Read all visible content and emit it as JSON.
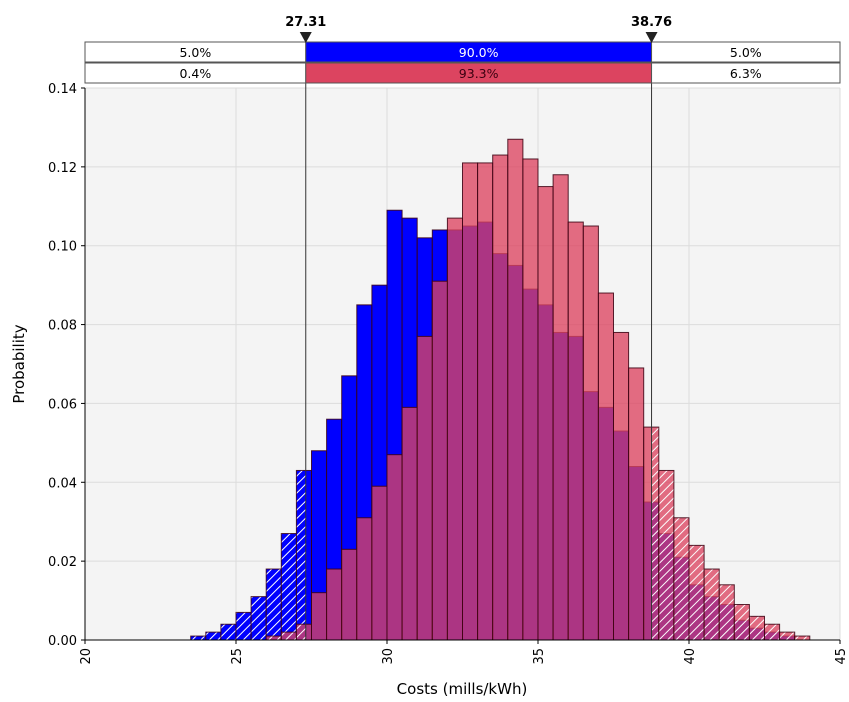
{
  "chart_data": {
    "type": "bar",
    "xlabel": "Costs (mills/kWh)",
    "ylabel": "Probability",
    "xlim": [
      20,
      45
    ],
    "ylim": [
      0,
      0.14
    ],
    "x_ticks": [
      "20",
      "25",
      "30",
      "35",
      "40",
      "45"
    ],
    "y_ticks": [
      "0.00",
      "0.02",
      "0.04",
      "0.06",
      "0.08",
      "0.10",
      "0.12",
      "0.14"
    ],
    "grid": true,
    "bin_width": 0.5,
    "markers": [
      {
        "label": "27.31",
        "x": 27.31
      },
      {
        "label": "38.76",
        "x": 38.76
      }
    ],
    "bands": [
      {
        "row": 1,
        "color": "#0000ff",
        "left": "5.0%",
        "middle": "90.0%",
        "right": "5.0%"
      },
      {
        "row": 2,
        "color": "#dc4460",
        "left": "0.4%",
        "middle": "93.3%",
        "right": "6.3%"
      }
    ],
    "series": [
      {
        "color": "#0000ff",
        "x": [
          23.5,
          24.0,
          24.5,
          25.0,
          25.5,
          26.0,
          26.5,
          27.0,
          27.5,
          28.0,
          28.5,
          29.0,
          29.5,
          30.0,
          30.5,
          31.0,
          31.5,
          32.0,
          32.5,
          33.0,
          33.5,
          34.0,
          34.5,
          35.0,
          35.5,
          36.0,
          36.5,
          37.0,
          37.5,
          38.0,
          38.5,
          39.0,
          39.5,
          40.0,
          40.5,
          41.0,
          41.5,
          42.0,
          42.5,
          43.0
        ],
        "values": [
          0.001,
          0.002,
          0.004,
          0.007,
          0.011,
          0.018,
          0.027,
          0.043,
          0.048,
          0.056,
          0.067,
          0.085,
          0.09,
          0.109,
          0.107,
          0.102,
          0.104,
          0.104,
          0.105,
          0.106,
          0.098,
          0.095,
          0.089,
          0.085,
          0.078,
          0.077,
          0.063,
          0.059,
          0.053,
          0.044,
          0.035,
          0.027,
          0.021,
          0.014,
          0.011,
          0.009,
          0.005,
          0.003,
          0.002,
          0.001
        ]
      },
      {
        "color": "#dc4460",
        "x": [
          26.0,
          26.5,
          27.0,
          27.5,
          28.0,
          28.5,
          29.0,
          29.5,
          30.0,
          30.5,
          31.0,
          31.5,
          32.0,
          32.5,
          33.0,
          33.5,
          34.0,
          34.5,
          35.0,
          35.5,
          36.0,
          36.5,
          37.0,
          37.5,
          38.0,
          38.5,
          39.0,
          39.5,
          40.0,
          40.5,
          41.0,
          41.5,
          42.0,
          42.5,
          43.0,
          43.5
        ],
        "values": [
          0.001,
          0.002,
          0.004,
          0.012,
          0.018,
          0.023,
          0.031,
          0.039,
          0.047,
          0.059,
          0.077,
          0.091,
          0.107,
          0.121,
          0.121,
          0.123,
          0.127,
          0.122,
          0.115,
          0.118,
          0.106,
          0.105,
          0.088,
          0.078,
          0.069,
          0.054,
          0.043,
          0.031,
          0.024,
          0.018,
          0.014,
          0.009,
          0.006,
          0.004,
          0.002,
          0.001
        ]
      }
    ]
  }
}
